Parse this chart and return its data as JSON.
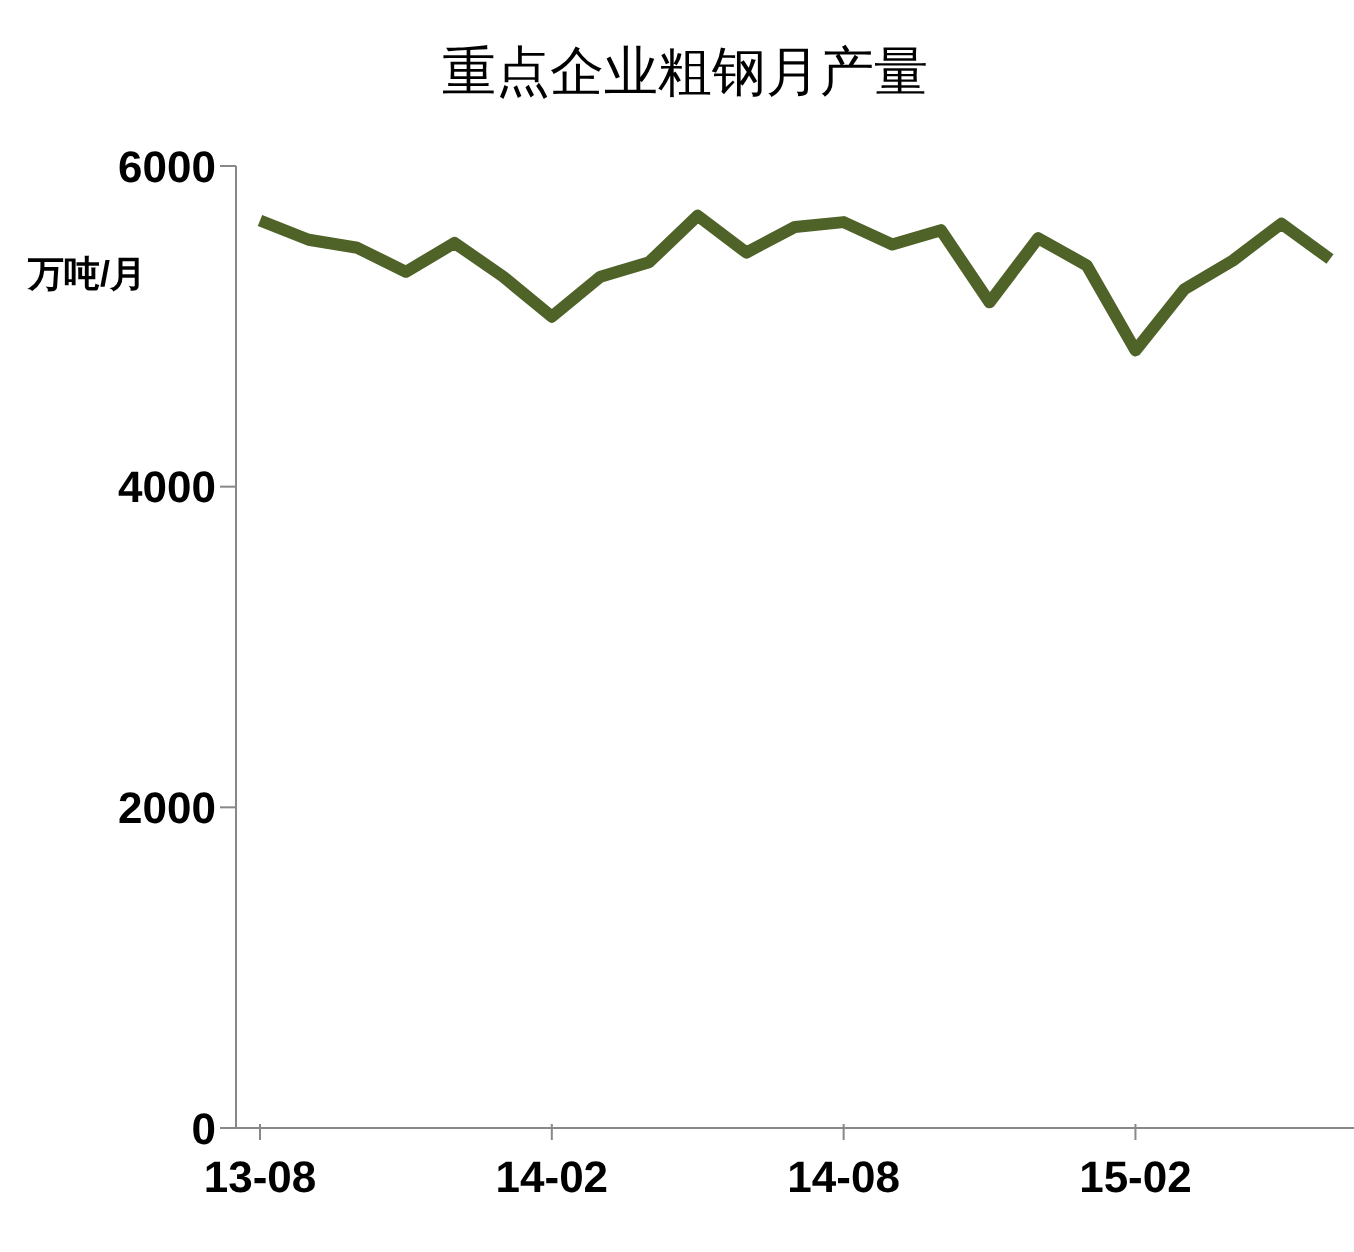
{
  "chart_data": {
    "type": "line",
    "title": "重点企业粗钢月产量",
    "ylabel": "万吨/月",
    "categories": [
      "13-08",
      null,
      null,
      null,
      null,
      null,
      "14-02",
      null,
      null,
      null,
      null,
      null,
      "14-08",
      null,
      null,
      null,
      null,
      null,
      "15-02",
      null,
      null,
      null,
      null
    ],
    "series": [
      {
        "color": "#4f6228",
        "values": [
          5660,
          5540,
          5490,
          5340,
          5520,
          5310,
          5060,
          5310,
          5400,
          5690,
          5460,
          5620,
          5650,
          5510,
          5600,
          5150,
          5550,
          5380,
          4850,
          5230,
          5410,
          5640,
          5420
        ]
      }
    ],
    "ylim": [
      0,
      6000
    ],
    "yticks": [
      0,
      2000,
      4000,
      6000
    ],
    "grid": false,
    "legend": false,
    "marker": "none",
    "line_style": "solid"
  }
}
